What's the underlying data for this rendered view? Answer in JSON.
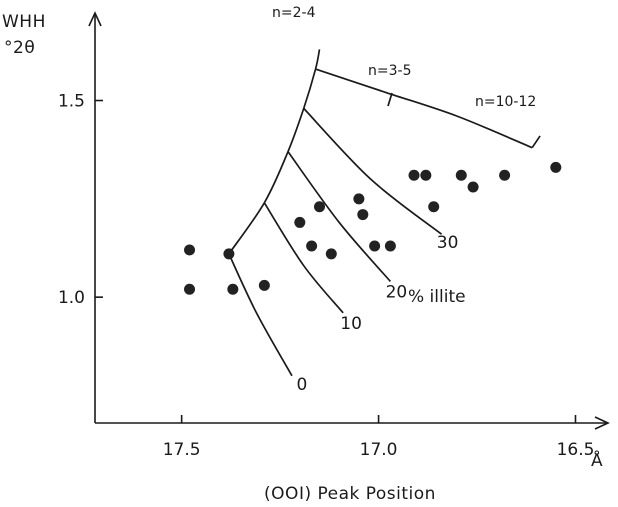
{
  "chart_data": {
    "type": "scatter",
    "title": "",
    "xlabel": "(OOI) Peak Position",
    "x_unit": "Å",
    "ylabel_line1": "WHH",
    "ylabel_line2": "°2θ",
    "xlim": [
      17.72,
      16.42
    ],
    "ylim": [
      0.68,
      1.72
    ],
    "x_ticks": [
      {
        "value": 17.5,
        "label": "17.5"
      },
      {
        "value": 17.0,
        "label": "17.0"
      },
      {
        "value": 16.5,
        "label": "16.5"
      }
    ],
    "y_ticks": [
      {
        "value": 1.5,
        "label": "1.5"
      },
      {
        "value": 1.0,
        "label": "1.0"
      }
    ],
    "grid": false,
    "points": [
      [
        17.48,
        1.12
      ],
      [
        17.48,
        1.02
      ],
      [
        17.37,
        1.02
      ],
      [
        17.29,
        1.03
      ],
      [
        17.38,
        1.11
      ],
      [
        17.2,
        1.19
      ],
      [
        17.15,
        1.23
      ],
      [
        17.17,
        1.13
      ],
      [
        17.12,
        1.11
      ],
      [
        17.05,
        1.25
      ],
      [
        17.04,
        1.21
      ],
      [
        17.01,
        1.13
      ],
      [
        16.97,
        1.13
      ],
      [
        16.91,
        1.31
      ],
      [
        16.88,
        1.31
      ],
      [
        16.86,
        1.23
      ],
      [
        16.79,
        1.31
      ],
      [
        16.76,
        1.28
      ],
      [
        16.68,
        1.31
      ],
      [
        16.55,
        1.33
      ]
    ],
    "illite_curves": [
      {
        "label": "0",
        "points": [
          [
            17.38,
            1.11
          ],
          [
            17.31,
            0.96
          ],
          [
            17.22,
            0.8
          ]
        ]
      },
      {
        "label": "10",
        "points": [
          [
            17.29,
            1.24
          ],
          [
            17.19,
            1.08
          ],
          [
            17.09,
            0.96
          ]
        ]
      },
      {
        "label": "20",
        "points": [
          [
            17.23,
            1.37
          ],
          [
            17.1,
            1.19
          ],
          [
            16.97,
            1.04
          ]
        ]
      },
      {
        "label": "30",
        "points": [
          [
            17.19,
            1.48
          ],
          [
            17.02,
            1.3
          ],
          [
            16.84,
            1.16
          ]
        ]
      }
    ],
    "illite_label": "% illite",
    "boundary_curves": [
      {
        "label": "n=2-4",
        "points": [
          [
            17.38,
            1.11
          ],
          [
            17.29,
            1.24
          ],
          [
            17.23,
            1.37
          ],
          [
            17.19,
            1.48
          ],
          [
            17.16,
            1.58
          ],
          [
            17.15,
            1.63
          ]
        ]
      },
      {
        "label": "n=3-5",
        "points": [
          [
            17.16,
            1.58
          ],
          [
            16.98,
            1.52
          ],
          [
            16.8,
            1.46
          ],
          [
            16.61,
            1.38
          ]
        ]
      },
      {
        "label": "n=10-12",
        "points": [
          [
            16.61,
            1.38
          ],
          [
            16.59,
            1.41
          ]
        ]
      }
    ],
    "n_labels": [
      "n=2-4",
      "n=3-5",
      "n=10-12"
    ]
  }
}
